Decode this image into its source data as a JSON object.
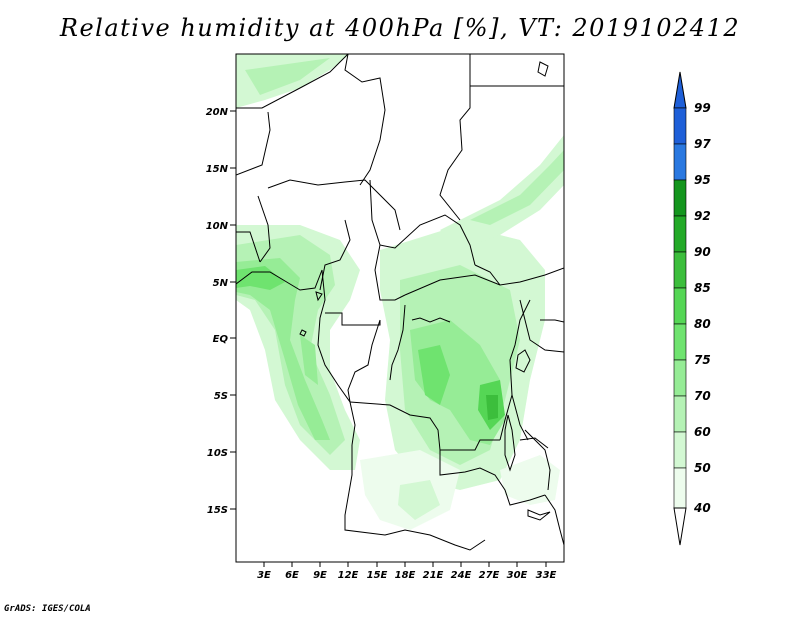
{
  "title": "Relative humidity at 400hPa [%], VT: 2019102412",
  "credit": "GrADS: IGES/COLA",
  "map": {
    "lat_labels": [
      "20N",
      "15N",
      "10N",
      "5N",
      "EQ",
      "5S",
      "10S",
      "15S"
    ],
    "lon_labels": [
      "3E",
      "6E",
      "9E",
      "12E",
      "15E",
      "18E",
      "21E",
      "24E",
      "27E",
      "30E",
      "33E"
    ]
  },
  "colorbar": {
    "labels": [
      "99",
      "97",
      "95",
      "92",
      "90",
      "85",
      "80",
      "75",
      "70",
      "60",
      "50",
      "40"
    ],
    "colors": [
      "#1e5fd8",
      "#2a78e0",
      "#3c96ee",
      "#14961e",
      "#23aa28",
      "#3cbe3c",
      "#55d655",
      "#6fe36f",
      "#96ec96",
      "#b5f2b5",
      "#d3f8d3",
      "#edfced"
    ]
  }
}
